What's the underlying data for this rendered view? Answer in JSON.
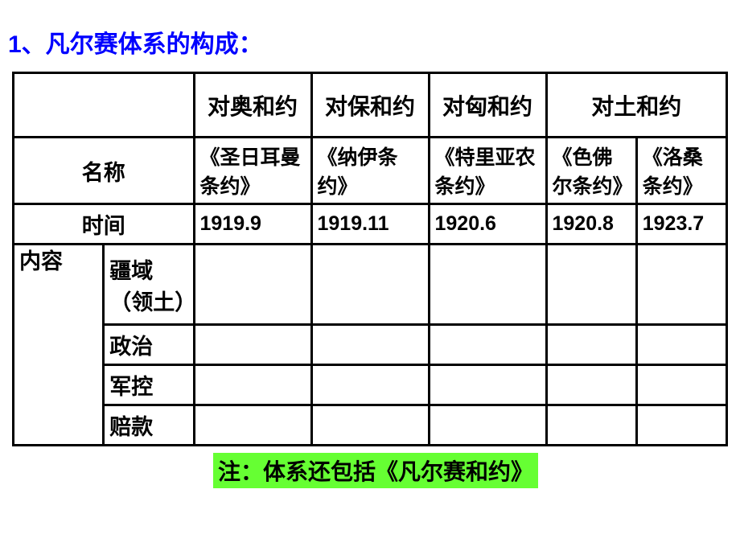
{
  "title": "1、凡尔赛体系的构成：",
  "columns": {
    "austria": "对奥和约",
    "bulgaria": "对保和约",
    "hungary": "对匈和约",
    "turkey": "对土和约"
  },
  "rows": {
    "name_label": "名称",
    "time_label": "时间",
    "content_label": "内容",
    "territory_label": "疆域（领土）",
    "politics_label": "政治",
    "military_label": "军控",
    "reparation_label": "赔款"
  },
  "treaties": {
    "austria_name": "《圣日耳曼条约》",
    "bulgaria_name": "《纳伊条约》",
    "hungary_name": "《特里亚农条约》",
    "turkey_name1": "《色佛尔条约》",
    "turkey_name2": "《洛桑条约》"
  },
  "dates": {
    "austria": "1919.9",
    "bulgaria": "1919.11",
    "hungary": "1920.6",
    "turkey1": "1920.8",
    "turkey2": "1923.7"
  },
  "footer": "注：体系还包括《凡尔赛和约》",
  "colors": {
    "title_color": "#0000ff",
    "note_bg": "#66ff33",
    "border": "#000000",
    "background": "#ffffff"
  }
}
